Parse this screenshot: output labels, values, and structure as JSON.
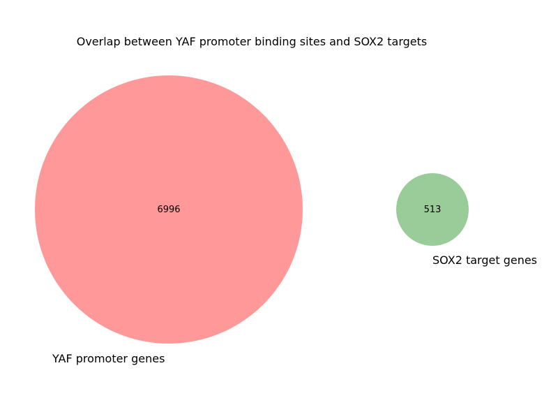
{
  "title": "Overlap between YAF promoter binding sites and SOX2 targets",
  "sets": [
    {
      "name": "YAF promoter genes",
      "count": "6996",
      "color": "#ff9999"
    },
    {
      "name": "SOX2 target genes",
      "count": "513",
      "color": "#99cc99"
    }
  ],
  "intersection": 0
}
